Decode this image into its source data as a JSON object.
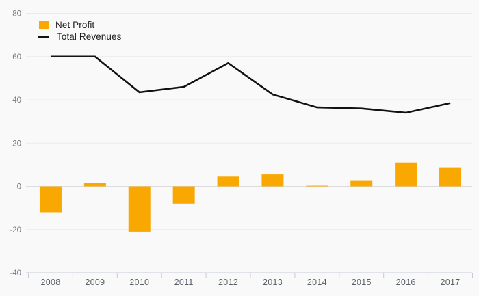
{
  "colors": {
    "background": "#f9f9f9",
    "grid": "#eaeaea",
    "zero_line": "#dcdcdc",
    "axis": "#c5cbd6",
    "y_label": "#76797e",
    "x_label": "#5c6169",
    "legend_text": "#1e1e1e",
    "bar": "#f9a802",
    "line": "#121212"
  },
  "chart_data": {
    "type": "combo",
    "categories": [
      "2008",
      "2009",
      "2010",
      "2011",
      "2012",
      "2013",
      "2014",
      "2015",
      "2016",
      "2017"
    ],
    "series": [
      {
        "name": "Net Profit",
        "kind": "bar",
        "color": "#f9a802",
        "values": [
          -12,
          1.5,
          -21,
          -8,
          4.5,
          5.5,
          0.3,
          2.5,
          11,
          8.5
        ]
      },
      {
        "name": "Total Revenues",
        "kind": "line",
        "color": "#121212",
        "values": [
          60,
          60,
          43.5,
          46,
          57,
          42.5,
          36.5,
          36,
          34,
          38.5
        ]
      }
    ],
    "title": "",
    "xlabel": "",
    "ylabel": "",
    "ylim": [
      -40,
      80
    ],
    "yticks": [
      80,
      60,
      40,
      20,
      0,
      -20,
      -40
    ],
    "grid": true,
    "legend_position": "top-left"
  }
}
